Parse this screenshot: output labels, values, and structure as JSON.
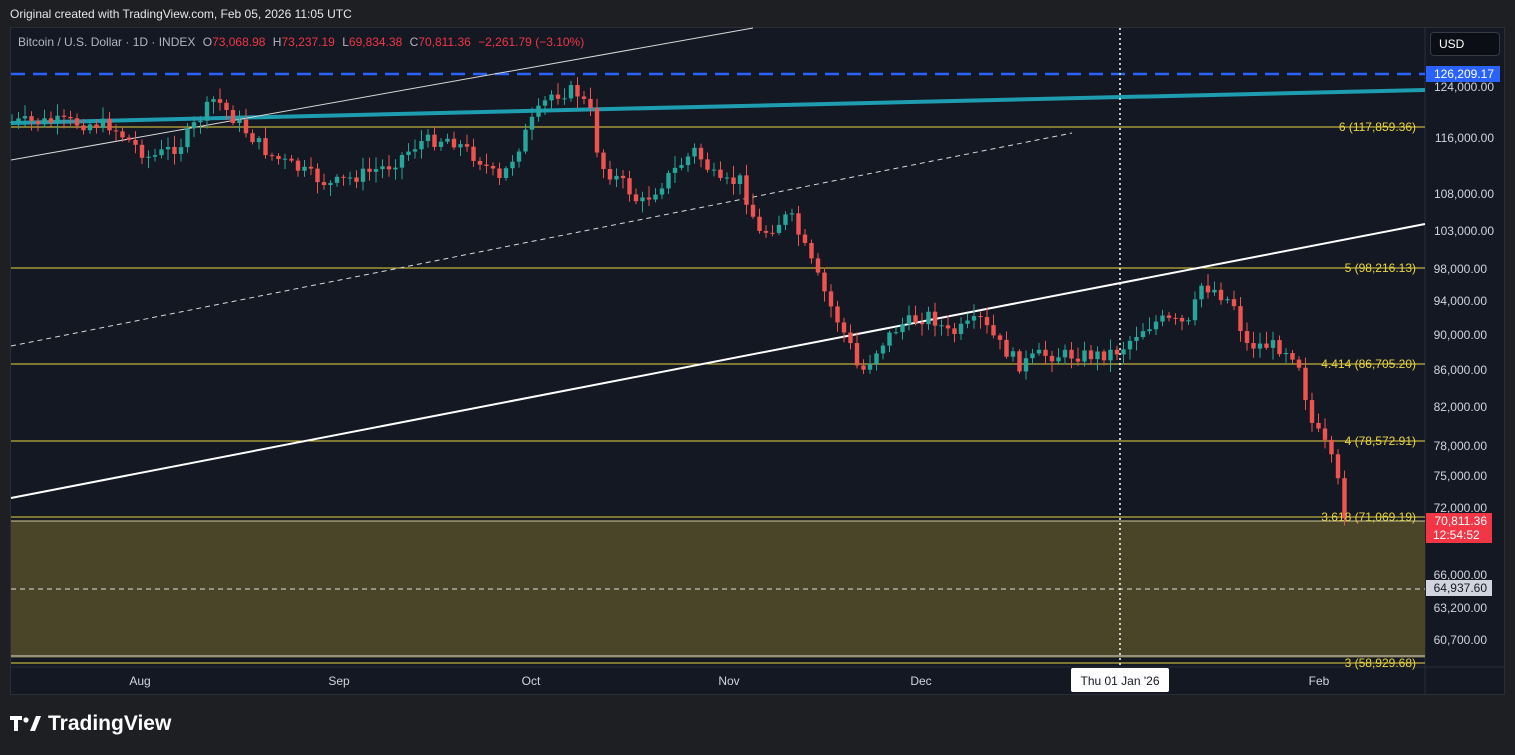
{
  "caption": "Original created with TradingView.com, Feb 05, 2026 11:05 UTC",
  "legend": {
    "symbol": "Bitcoin / U.S. Dollar · 1D · INDEX",
    "o_label": "O",
    "o_value": "73,068.98",
    "h_label": "H",
    "h_value": "73,237.19",
    "l_label": "L",
    "l_value": "69,834.38",
    "c_label": "C",
    "c_value": "70,811.36",
    "change": "−2,261.79 (−3.10%)"
  },
  "currency_button": "USD",
  "price_axis": [
    "124,000.00",
    "116,000.00",
    "108,000.00",
    "103,000.00",
    "98,000.00",
    "94,000.00",
    "90,000.00",
    "86,000.00",
    "82,000.00",
    "78,000.00",
    "75,000.00",
    "72,000.00",
    "66,000.00",
    "63,200.00",
    "60,700.00"
  ],
  "time_axis": [
    "Aug",
    "Sep",
    "Oct",
    "Nov",
    "Dec",
    "Feb"
  ],
  "crosshair_date": "Thu 01 Jan '26",
  "badges": {
    "top_level": "126,209.17",
    "last_price": "70,811.36",
    "countdown": "12:54:52",
    "lower_level": "64,937.60"
  },
  "fib_levels": [
    {
      "label": "6 (117,859.36)"
    },
    {
      "label": "5 (98,216.13)"
    },
    {
      "label": "4.414 (86,705.20)"
    },
    {
      "label": "4 (78,572.91)"
    },
    {
      "label": "3.618 (71,069.19)"
    },
    {
      "label": "3 (58,929.68)"
    }
  ],
  "colors": {
    "up": "#26a69a",
    "down": "#ef5350",
    "fib": "#e8d542",
    "blue_level": "#2962ff",
    "trend_cyan": "#1e9cb0",
    "zone": "#4a4428"
  },
  "brand": "TradingView",
  "brand_icon": "tradingview-logo-icon"
}
